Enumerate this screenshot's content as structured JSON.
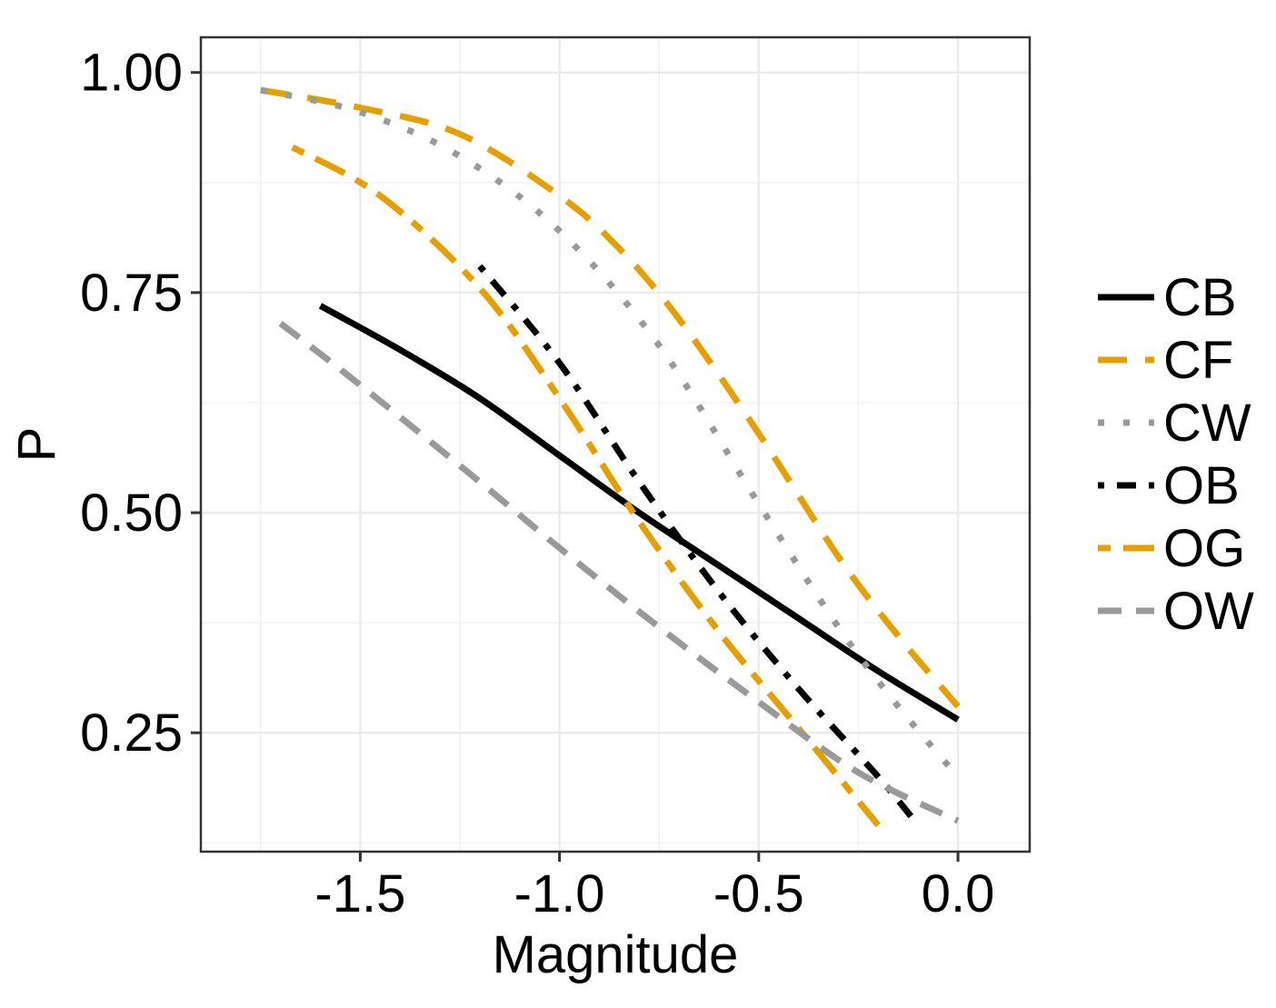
{
  "chart_data": {
    "type": "line",
    "title": "",
    "xlabel": "Magnitude",
    "ylabel": "P",
    "xlim": [
      -1.9,
      0.18
    ],
    "ylim": [
      0.115,
      1.04
    ],
    "x_ticks": [
      -1.5,
      -1.0,
      -0.5,
      0.0
    ],
    "x_tick_labels": [
      "-1.5",
      "-1.0",
      "-0.5",
      "0.0"
    ],
    "y_ticks": [
      0.25,
      0.5,
      0.75,
      1.0
    ],
    "y_tick_labels": [
      "0.25",
      "0.50",
      "0.75",
      "1.00"
    ],
    "x_minor": [
      -1.75,
      -1.25,
      -0.75,
      -0.25
    ],
    "y_minor": [
      0.125,
      0.375,
      0.625,
      0.875
    ],
    "grid": true,
    "legend_position": "right",
    "series": [
      {
        "name": "CB",
        "color": "#000000",
        "dash": "solid",
        "x": [
          -1.6,
          -1.4,
          -1.2,
          -1.0,
          -0.8,
          -0.6,
          -0.4,
          -0.2,
          0.0
        ],
        "y": [
          0.735,
          0.685,
          0.63,
          0.565,
          0.5,
          0.44,
          0.38,
          0.32,
          0.265
        ]
      },
      {
        "name": "CF",
        "color": "#E69F00",
        "dash": "longdash",
        "x": [
          -1.75,
          -1.5,
          -1.25,
          -1.0,
          -0.85,
          -0.7,
          -0.5,
          -0.3,
          -0.15,
          0.0
        ],
        "y": [
          0.98,
          0.96,
          0.93,
          0.86,
          0.8,
          0.72,
          0.59,
          0.45,
          0.36,
          0.28
        ]
      },
      {
        "name": "CW",
        "color": "#999999",
        "dash": "dotted",
        "x": [
          -1.75,
          -1.5,
          -1.25,
          -1.0,
          -0.75,
          -0.5,
          -0.3,
          -0.15,
          0.0
        ],
        "y": [
          0.98,
          0.955,
          0.905,
          0.82,
          0.69,
          0.51,
          0.37,
          0.28,
          0.2
        ]
      },
      {
        "name": "OB",
        "color": "#000000",
        "dash": "dotdash",
        "x": [
          -1.2,
          -1.0,
          -0.8,
          -0.6,
          -0.4,
          -0.2,
          -0.1
        ],
        "y": [
          0.78,
          0.67,
          0.535,
          0.41,
          0.3,
          0.2,
          0.145
        ]
      },
      {
        "name": "OG",
        "color": "#E69F00",
        "dash": "twodash",
        "x": [
          -1.67,
          -1.45,
          -1.2,
          -1.0,
          -0.8,
          -0.6,
          -0.4,
          -0.2
        ],
        "y": [
          0.915,
          0.86,
          0.755,
          0.63,
          0.49,
          0.365,
          0.255,
          0.145
        ]
      },
      {
        "name": "OW",
        "color": "#999999",
        "dash": "dashed",
        "x": [
          -1.7,
          -1.5,
          -1.2,
          -1.0,
          -0.75,
          -0.5,
          -0.25,
          0.0
        ],
        "y": [
          0.715,
          0.645,
          0.535,
          0.46,
          0.37,
          0.285,
          0.205,
          0.15
        ]
      }
    ]
  }
}
